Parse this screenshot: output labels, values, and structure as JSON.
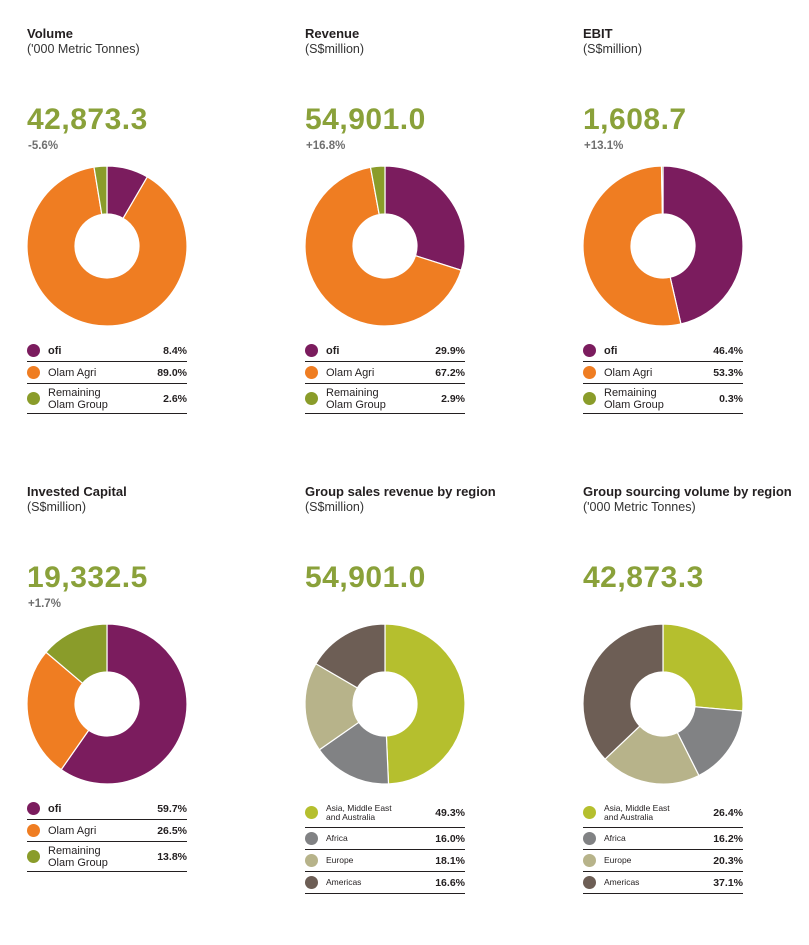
{
  "colors": {
    "ofi": "#7b1c5e",
    "olam_agri": "#ef7d22",
    "remaining": "#8a9c2a",
    "asia": "#b5bf2e",
    "africa": "#818284",
    "europe": "#b7b38a",
    "americas": "#6d5e55"
  },
  "chart_data": [
    {
      "type": "pie",
      "donut": true,
      "title": "Volume",
      "subtitle": "('000 Metric Tonnes)",
      "headline": "42,873.3",
      "change": "-5.6%",
      "legend": [
        {
          "name": "ofi",
          "value": 8.4,
          "label": "8.4%",
          "color_key": "ofi",
          "bold": true
        },
        {
          "name": "Olam Agri",
          "value": 89.0,
          "label": "89.0%",
          "color_key": "olam_agri"
        },
        {
          "name": "Remaining Olam Group",
          "value": 2.6,
          "label": "2.6%",
          "color_key": "remaining",
          "two_line": [
            "Remaining",
            "Olam Group"
          ]
        }
      ],
      "slice_order": [
        "ofi",
        "Olam Agri",
        "Remaining Olam Group"
      ]
    },
    {
      "type": "pie",
      "donut": true,
      "title": "Revenue",
      "subtitle": "(S$million)",
      "headline": "54,901.0",
      "change": "+16.8%",
      "legend": [
        {
          "name": "ofi",
          "value": 29.9,
          "label": "29.9%",
          "color_key": "ofi",
          "bold": true
        },
        {
          "name": "Olam Agri",
          "value": 67.2,
          "label": "67.2%",
          "color_key": "olam_agri"
        },
        {
          "name": "Remaining Olam Group",
          "value": 2.9,
          "label": "2.9%",
          "color_key": "remaining",
          "two_line": [
            "Remaining",
            "Olam Group"
          ]
        }
      ],
      "slice_order": [
        "ofi",
        "Olam Agri",
        "Remaining Olam Group"
      ]
    },
    {
      "type": "pie",
      "donut": true,
      "title": "EBIT",
      "subtitle": "(S$million)",
      "headline": "1,608.7",
      "change": "+13.1%",
      "legend": [
        {
          "name": "ofi",
          "value": 46.4,
          "label": "46.4%",
          "color_key": "ofi",
          "bold": true
        },
        {
          "name": "Olam Agri",
          "value": 53.3,
          "label": "53.3%",
          "color_key": "olam_agri"
        },
        {
          "name": "Remaining Olam Group",
          "value": 0.3,
          "label": "0.3%",
          "color_key": "remaining",
          "two_line": [
            "Remaining",
            "Olam Group"
          ]
        }
      ],
      "slice_order": [
        "ofi",
        "Olam Agri",
        "Remaining Olam Group"
      ]
    },
    {
      "type": "pie",
      "donut": true,
      "title": "Invested Capital",
      "subtitle": "(S$million)",
      "headline": "19,332.5",
      "change": "+1.7%",
      "legend": [
        {
          "name": "ofi",
          "value": 59.7,
          "label": "59.7%",
          "color_key": "ofi",
          "bold": true
        },
        {
          "name": "Olam Agri",
          "value": 26.5,
          "label": "26.5%",
          "color_key": "olam_agri"
        },
        {
          "name": "Remaining Olam Group",
          "value": 13.8,
          "label": "13.8%",
          "color_key": "remaining",
          "two_line": [
            "Remaining",
            "Olam Group"
          ]
        }
      ],
      "slice_order": [
        "ofi",
        "Olam Agri",
        "Remaining Olam Group"
      ]
    },
    {
      "type": "pie",
      "donut": true,
      "title": "Group sales revenue by region",
      "subtitle": "(S$million)",
      "headline": "54,901.0",
      "change": "",
      "legend": [
        {
          "name": "Asia, Middle East and Australia",
          "value": 49.3,
          "label": "49.3%",
          "color_key": "asia",
          "small": true,
          "two_line": [
            "Asia, Middle East",
            "and Australia"
          ]
        },
        {
          "name": "Africa",
          "value": 16.0,
          "label": "16.0%",
          "color_key": "africa",
          "small": true
        },
        {
          "name": "Europe",
          "value": 18.1,
          "label": "18.1%",
          "color_key": "europe",
          "small": true
        },
        {
          "name": "Americas",
          "value": 16.6,
          "label": "16.6%",
          "color_key": "americas",
          "small": true
        }
      ],
      "slice_order": [
        "Asia, Middle East and Australia",
        "Africa",
        "Europe",
        "Americas"
      ]
    },
    {
      "type": "pie",
      "donut": true,
      "title": "Group sourcing volume by region",
      "subtitle": "('000 Metric Tonnes)",
      "headline": "42,873.3",
      "change": "",
      "legend": [
        {
          "name": "Asia, Middle East and Australia",
          "value": 26.4,
          "label": "26.4%",
          "color_key": "asia",
          "small": true,
          "two_line": [
            "Asia, Middle East",
            "and Australia"
          ]
        },
        {
          "name": "Africa",
          "value": 16.2,
          "label": "16.2%",
          "color_key": "africa",
          "small": true
        },
        {
          "name": "Europe",
          "value": 20.3,
          "label": "20.3%",
          "color_key": "europe",
          "small": true
        },
        {
          "name": "Americas",
          "value": 37.1,
          "label": "37.1%",
          "color_key": "americas",
          "small": true
        }
      ],
      "slice_order": [
        "Asia, Middle East and Australia",
        "Africa",
        "Europe",
        "Americas"
      ]
    }
  ]
}
